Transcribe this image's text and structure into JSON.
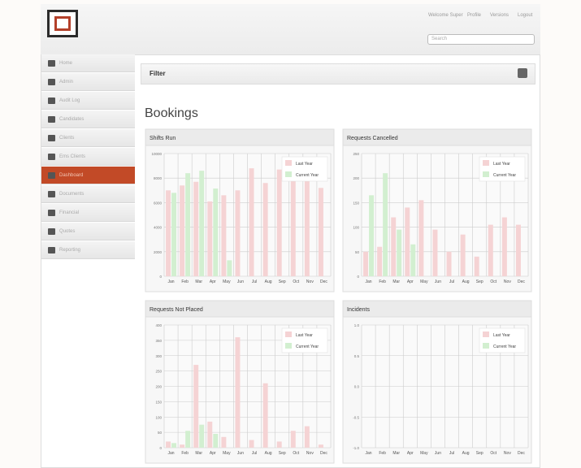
{
  "header": {
    "links": [
      "Welcome Super",
      "Profile",
      "Versions",
      "Logout"
    ],
    "search_placeholder": "Search"
  },
  "nav": {
    "items": [
      "Home",
      "Admin",
      "Audit Log",
      "Candidates",
      "Clients",
      "Ems Clients",
      "Dashboard",
      "Documents",
      "Financial",
      "Quotes",
      "Reporting"
    ],
    "active": 6
  },
  "filter": {
    "title": "Filter"
  },
  "page_title": "Bookings",
  "chart_data": [
    {
      "type": "bar",
      "title": "Shifts Run",
      "categories": [
        "Jan",
        "Feb",
        "Mar",
        "Apr",
        "May",
        "Jun",
        "Jul",
        "Aug",
        "Sep",
        "Oct",
        "Nov",
        "Dec"
      ],
      "series": [
        {
          "name": "Last Year",
          "color": "#f5d3d4",
          "values": [
            7000,
            7400,
            7700,
            6100,
            6600,
            7000,
            8800,
            7600,
            8700,
            8400,
            8100,
            7200
          ]
        },
        {
          "name": "Current Year",
          "color": "#d2efd0",
          "values": [
            6800,
            8400,
            8600,
            7150,
            1300,
            null,
            null,
            null,
            null,
            null,
            null,
            null
          ]
        }
      ],
      "ylim": [
        0,
        10000
      ],
      "yticks": [
        0,
        2000,
        4000,
        6000,
        8000,
        10000
      ],
      "grid": true,
      "legend": "top-right"
    },
    {
      "type": "bar",
      "title": "Requests Cancelled",
      "categories": [
        "Jan",
        "Feb",
        "Mar",
        "Apr",
        "May",
        "Jun",
        "Jul",
        "Aug",
        "Sep",
        "Oct",
        "Nov",
        "Dec"
      ],
      "series": [
        {
          "name": "Last Year",
          "color": "#f5d3d4",
          "values": [
            50,
            60,
            120,
            140,
            155,
            95,
            50,
            85,
            40,
            105,
            120,
            105
          ]
        },
        {
          "name": "Current Year",
          "color": "#d2efd0",
          "values": [
            165,
            210,
            95,
            65,
            null,
            null,
            null,
            null,
            null,
            null,
            null,
            null
          ]
        }
      ],
      "ylim": [
        0,
        250
      ],
      "yticks": [
        0,
        50,
        100,
        150,
        200,
        250
      ],
      "grid": true,
      "legend": "top-right"
    },
    {
      "type": "bar",
      "title": "Requests Not Placed",
      "categories": [
        "Jan",
        "Feb",
        "Mar",
        "Apr",
        "May",
        "Jun",
        "Jul",
        "Aug",
        "Sep",
        "Oct",
        "Nov",
        "Dec"
      ],
      "series": [
        {
          "name": "Last Year",
          "color": "#f5d3d4",
          "values": [
            20,
            10,
            270,
            85,
            35,
            360,
            25,
            210,
            20,
            55,
            70,
            10
          ]
        },
        {
          "name": "Current Year",
          "color": "#d2efd0",
          "values": [
            15,
            55,
            75,
            45,
            null,
            null,
            null,
            null,
            null,
            null,
            null,
            null
          ]
        }
      ],
      "ylim": [
        0,
        400
      ],
      "yticks": [
        0,
        50,
        100,
        150,
        200,
        250,
        300,
        350,
        400
      ],
      "grid": true,
      "legend": "top-right"
    },
    {
      "type": "bar",
      "title": "Incidents",
      "categories": [
        "Jan",
        "Feb",
        "Mar",
        "Apr",
        "May",
        "Jun",
        "Jul",
        "Aug",
        "Sep",
        "Oct",
        "Nov",
        "Dec"
      ],
      "series": [
        {
          "name": "Last Year",
          "color": "#f5d3d4",
          "values": [
            null,
            null,
            null,
            null,
            null,
            null,
            null,
            null,
            null,
            null,
            null,
            null
          ]
        },
        {
          "name": "Current Year",
          "color": "#d2efd0",
          "values": [
            null,
            null,
            null,
            null,
            null,
            null,
            null,
            null,
            null,
            null,
            null,
            null
          ]
        }
      ],
      "ylim": [
        -1,
        1
      ],
      "yticks": [
        {
          "value": -1,
          "label": "-1.0"
        },
        {
          "value": -0.5,
          "label": "-0.5"
        },
        {
          "value": 0,
          "label": "0.0"
        },
        {
          "value": 0.5,
          "label": "0.5"
        },
        {
          "value": 1,
          "label": "1.0"
        }
      ],
      "grid": true,
      "legend": "top-right"
    }
  ]
}
